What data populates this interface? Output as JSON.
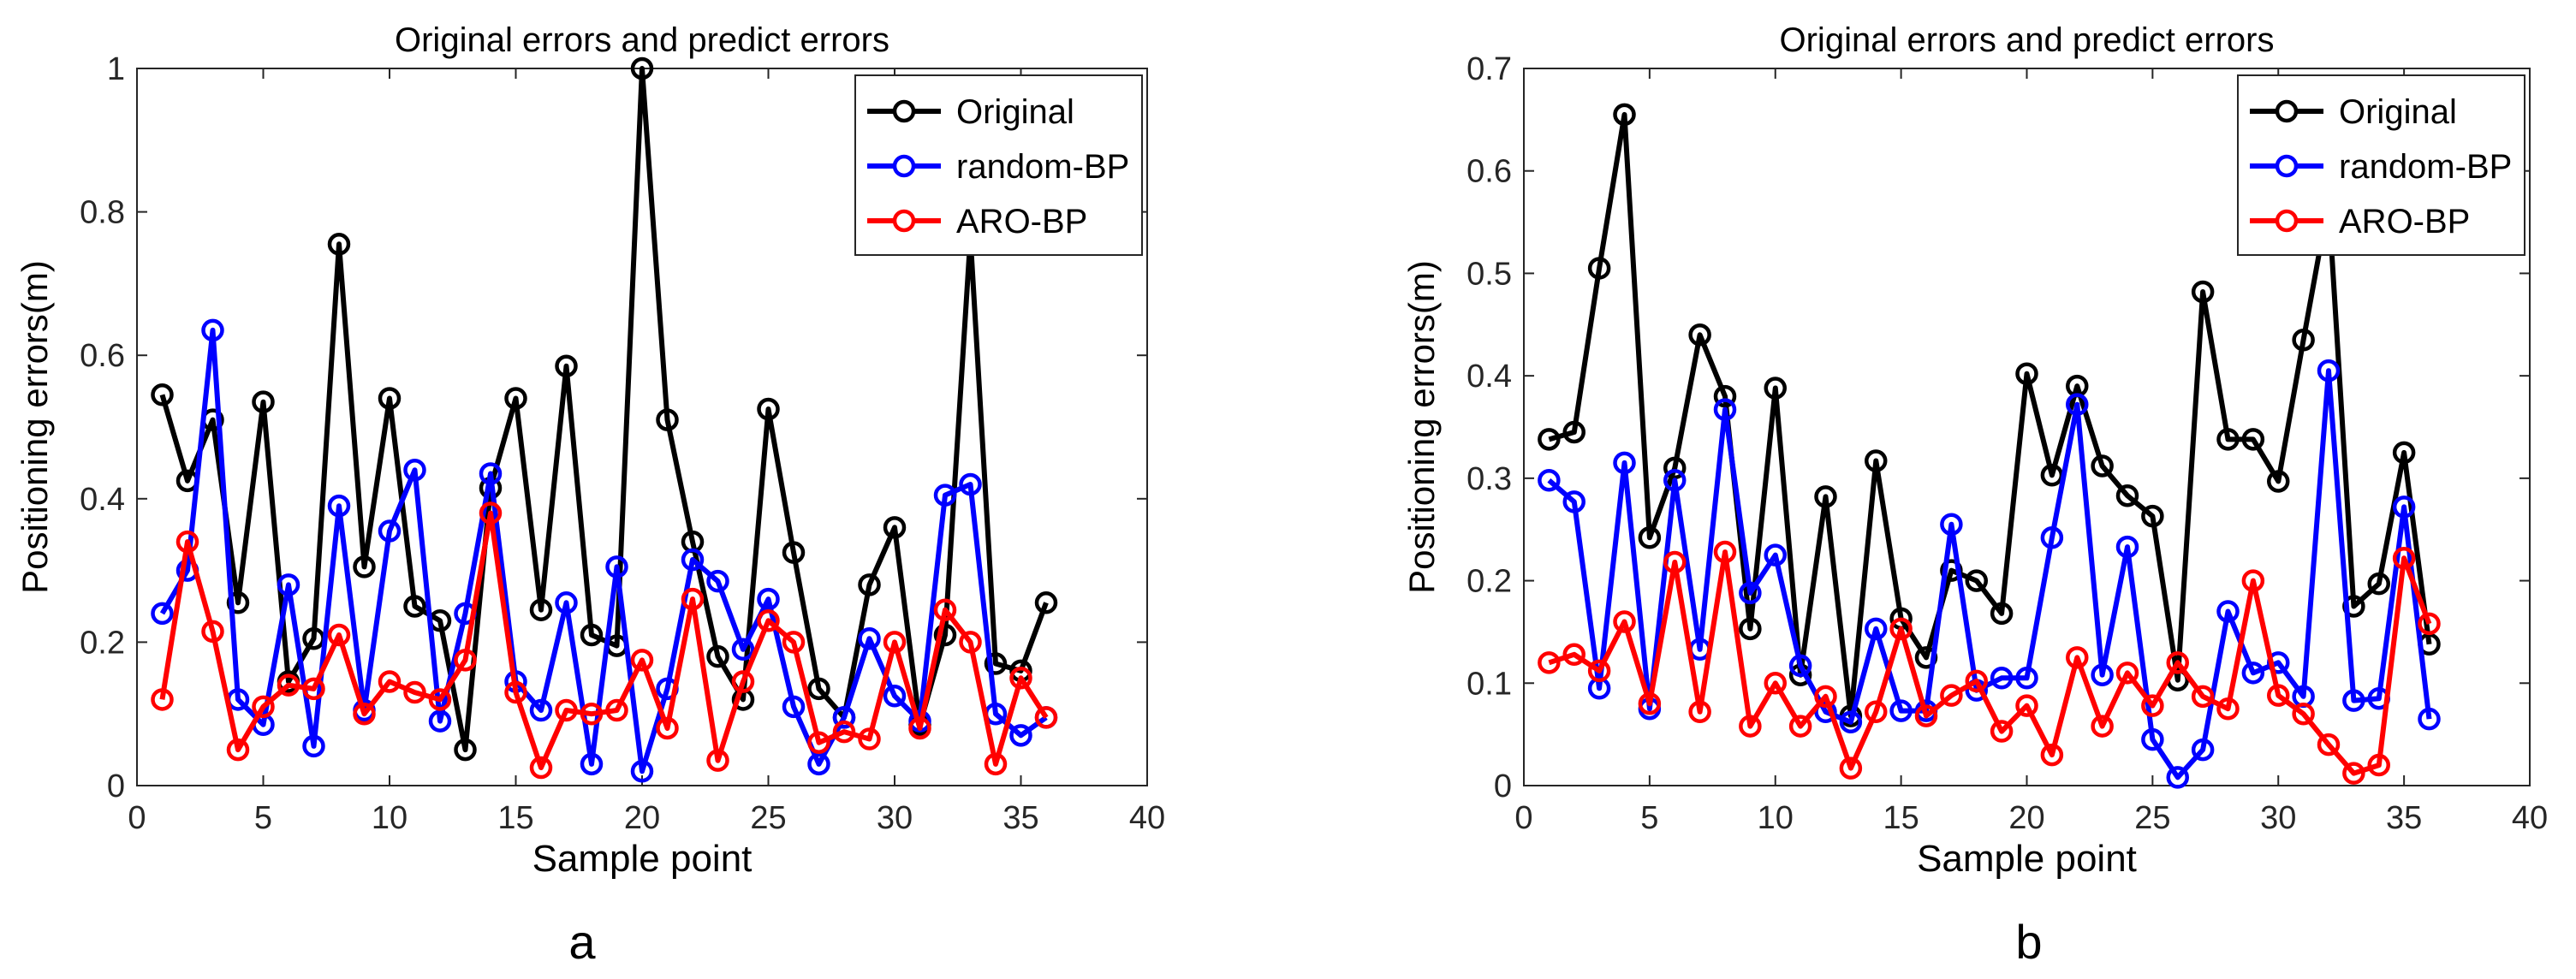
{
  "panels": [
    {
      "caption": "a"
    },
    {
      "caption": "b"
    }
  ],
  "chart_data": [
    {
      "type": "line",
      "panel": "a",
      "title": "Original errors and predict errors",
      "xlabel": "Sample point",
      "ylabel": "Positioning errors(m)",
      "xlim": [
        0,
        40
      ],
      "ylim": [
        0,
        1
      ],
      "xticks": [
        0,
        5,
        10,
        15,
        20,
        25,
        30,
        35,
        40
      ],
      "yticks": [
        0,
        0.2,
        0.4,
        0.6,
        0.8,
        1
      ],
      "ytick_labels": [
        "0",
        "0.2",
        "0.4",
        "0.6",
        "0.8",
        "1"
      ],
      "legend_position": "top-right",
      "x": [
        1,
        2,
        3,
        4,
        5,
        6,
        7,
        8,
        9,
        10,
        11,
        12,
        13,
        14,
        15,
        16,
        17,
        18,
        19,
        20,
        21,
        22,
        23,
        24,
        25,
        26,
        27,
        28,
        29,
        30,
        31,
        32,
        33,
        34,
        35,
        36
      ],
      "series": [
        {
          "name": "Original",
          "color": "#000000",
          "values": [
            0.545,
            0.425,
            0.51,
            0.255,
            0.535,
            0.145,
            0.205,
            0.755,
            0.305,
            0.54,
            0.25,
            0.23,
            0.05,
            0.415,
            0.54,
            0.245,
            0.585,
            0.21,
            0.195,
            1.0,
            0.51,
            0.34,
            0.18,
            0.12,
            0.525,
            0.325,
            0.135,
            0.095,
            0.28,
            0.36,
            0.085,
            0.21,
            0.765,
            0.17,
            0.16,
            0.255
          ]
        },
        {
          "name": "random-BP",
          "color": "#0000ff",
          "values": [
            0.24,
            0.3,
            0.635,
            0.12,
            0.085,
            0.28,
            0.055,
            0.39,
            0.105,
            0.355,
            0.44,
            0.09,
            0.24,
            0.435,
            0.145,
            0.105,
            0.255,
            0.03,
            0.305,
            0.02,
            0.135,
            0.315,
            0.285,
            0.19,
            0.26,
            0.11,
            0.03,
            0.095,
            0.205,
            0.125,
            0.09,
            0.405,
            0.42,
            0.1,
            0.07,
            0.095
          ]
        },
        {
          "name": "ARO-BP",
          "color": "#ff0000",
          "values": [
            0.12,
            0.34,
            0.215,
            0.05,
            0.11,
            0.14,
            0.135,
            0.21,
            0.1,
            0.145,
            0.13,
            0.12,
            0.175,
            0.38,
            0.13,
            0.025,
            0.105,
            0.1,
            0.105,
            0.175,
            0.08,
            0.26,
            0.035,
            0.145,
            0.23,
            0.2,
            0.06,
            0.075,
            0.065,
            0.2,
            0.08,
            0.245,
            0.2,
            0.03,
            0.15,
            0.095
          ]
        }
      ]
    },
    {
      "type": "line",
      "panel": "b",
      "title": "Original errors and predict errors",
      "xlabel": "Sample point",
      "ylabel": "Positioning errors(m)",
      "xlim": [
        0,
        40
      ],
      "ylim": [
        0,
        0.7
      ],
      "xticks": [
        0,
        5,
        10,
        15,
        20,
        25,
        30,
        35,
        40
      ],
      "yticks": [
        0,
        0.1,
        0.2,
        0.3,
        0.4,
        0.5,
        0.6,
        0.7
      ],
      "ytick_labels": [
        "0",
        "0.1",
        "0.2",
        "0.3",
        "0.4",
        "0.5",
        "0.6",
        "0.7"
      ],
      "legend_position": "top-right",
      "x": [
        1,
        2,
        3,
        4,
        5,
        6,
        7,
        8,
        9,
        10,
        11,
        12,
        13,
        14,
        15,
        16,
        17,
        18,
        19,
        20,
        21,
        22,
        23,
        24,
        25,
        26,
        27,
        28,
        29,
        30,
        31,
        32,
        33,
        34,
        35,
        36
      ],
      "series": [
        {
          "name": "Original",
          "color": "#000000",
          "values": [
            0.338,
            0.345,
            0.505,
            0.655,
            0.242,
            0.31,
            0.44,
            0.38,
            0.153,
            0.388,
            0.108,
            0.282,
            0.068,
            0.317,
            0.163,
            0.125,
            0.21,
            0.2,
            0.168,
            0.402,
            0.303,
            0.39,
            0.312,
            0.283,
            0.263,
            0.103,
            0.482,
            0.338,
            0.338,
            0.297,
            0.435,
            0.57,
            0.175,
            0.197,
            0.325,
            0.138
          ]
        },
        {
          "name": "random-BP",
          "color": "#0000ff",
          "values": [
            0.298,
            0.277,
            0.095,
            0.315,
            0.075,
            0.298,
            0.133,
            0.367,
            0.188,
            0.225,
            0.117,
            0.072,
            0.062,
            0.153,
            0.073,
            0.073,
            0.255,
            0.093,
            0.105,
            0.105,
            0.242,
            0.372,
            0.108,
            0.233,
            0.045,
            0.008,
            0.035,
            0.17,
            0.11,
            0.12,
            0.087,
            0.405,
            0.083,
            0.085,
            0.272,
            0.065
          ]
        },
        {
          "name": "ARO-BP",
          "color": "#ff0000",
          "values": [
            0.12,
            0.128,
            0.112,
            0.16,
            0.08,
            0.218,
            0.072,
            0.228,
            0.058,
            0.1,
            0.058,
            0.087,
            0.017,
            0.072,
            0.153,
            0.068,
            0.088,
            0.102,
            0.053,
            0.078,
            0.03,
            0.125,
            0.058,
            0.11,
            0.078,
            0.12,
            0.087,
            0.075,
            0.2,
            0.088,
            0.07,
            0.04,
            0.012,
            0.02,
            0.222,
            0.158
          ]
        }
      ]
    }
  ]
}
